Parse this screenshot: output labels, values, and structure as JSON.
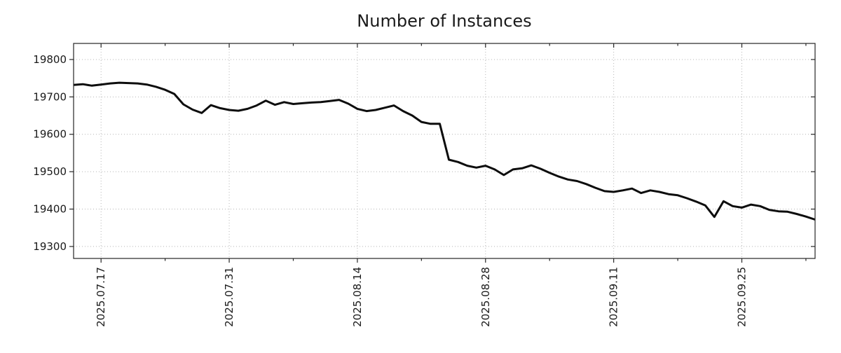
{
  "chart_data": {
    "type": "line",
    "title": "Number of Instances",
    "legend": "none",
    "grid": {
      "style": "dotted",
      "shown_at": "major-ticks-only"
    },
    "x": [
      "2025.07.14",
      "2025.07.15",
      "2025.07.16",
      "2025.07.17",
      "2025.07.18",
      "2025.07.19",
      "2025.07.20",
      "2025.07.21",
      "2025.07.22",
      "2025.07.23",
      "2025.07.24",
      "2025.07.25",
      "2025.07.26",
      "2025.07.27",
      "2025.07.28",
      "2025.07.29",
      "2025.07.30",
      "2025.07.31",
      "2025.08.01",
      "2025.08.02",
      "2025.08.03",
      "2025.08.04",
      "2025.08.05",
      "2025.08.06",
      "2025.08.07",
      "2025.08.08",
      "2025.08.09",
      "2025.08.10",
      "2025.08.11",
      "2025.08.12",
      "2025.08.13",
      "2025.08.14",
      "2025.08.15",
      "2025.08.16",
      "2025.08.17",
      "2025.08.18",
      "2025.08.19",
      "2025.08.20",
      "2025.08.21",
      "2025.08.22",
      "2025.08.23",
      "2025.08.24",
      "2025.08.25",
      "2025.08.26",
      "2025.08.27",
      "2025.08.28",
      "2025.08.29",
      "2025.08.30",
      "2025.08.31",
      "2025.09.01",
      "2025.09.02",
      "2025.09.03",
      "2025.09.04",
      "2025.09.05",
      "2025.09.06",
      "2025.09.07",
      "2025.09.08",
      "2025.09.09",
      "2025.09.10",
      "2025.09.11",
      "2025.09.12",
      "2025.09.13",
      "2025.09.14",
      "2025.09.15",
      "2025.09.16",
      "2025.09.17",
      "2025.09.18",
      "2025.09.19",
      "2025.09.20",
      "2025.09.21",
      "2025.09.22",
      "2025.09.23",
      "2025.09.24",
      "2025.09.25",
      "2025.09.26",
      "2025.09.27",
      "2025.09.28",
      "2025.09.29",
      "2025.09.30",
      "2025.10.01",
      "2025.10.02",
      "2025.10.03"
    ],
    "series": [
      {
        "name": "instances",
        "values": [
          19732,
          19734,
          19730,
          19733,
          19736,
          19738,
          19737,
          19736,
          19733,
          19727,
          19719,
          19708,
          19680,
          19666,
          19657,
          19678,
          19670,
          19665,
          19663,
          19668,
          19677,
          19690,
          19679,
          19686,
          19681,
          19683,
          19685,
          19686,
          19689,
          19692,
          19682,
          19668,
          19662,
          19665,
          19671,
          19677,
          19662,
          19650,
          19633,
          19628,
          19628,
          19532,
          19526,
          19516,
          19511,
          19516,
          19506,
          19491,
          19506,
          19509,
          19517,
          19508,
          19497,
          19487,
          19479,
          19475,
          19467,
          19457,
          19448,
          19446,
          19450,
          19455,
          19443,
          19450,
          19446,
          19440,
          19437,
          19429,
          19420,
          19410,
          19379,
          19421,
          19408,
          19404,
          19412,
          19408,
          19398,
          19394,
          19393,
          19387,
          19380,
          19372
        ]
      }
    ],
    "x_major_ticks": [
      {
        "label": "2025.07.17",
        "index": 3
      },
      {
        "label": "2025.07.31",
        "index": 17
      },
      {
        "label": "2025.08.14",
        "index": 31
      },
      {
        "label": "2025.08.28",
        "index": 45
      },
      {
        "label": "2025.09.11",
        "index": 59
      },
      {
        "label": "2025.09.25",
        "index": 73
      }
    ],
    "x_minor_tick_indices": [
      10,
      24,
      38,
      52,
      66,
      80
    ],
    "y_ticks": [
      19300,
      19400,
      19500,
      19600,
      19700,
      19800
    ],
    "ylim": [
      19268,
      19843
    ],
    "colors": {
      "line": "#0d0d0d",
      "grid": "#b5b5b5",
      "axis": "#262626",
      "text": "#1a1a1a",
      "background": "#ffffff"
    }
  }
}
